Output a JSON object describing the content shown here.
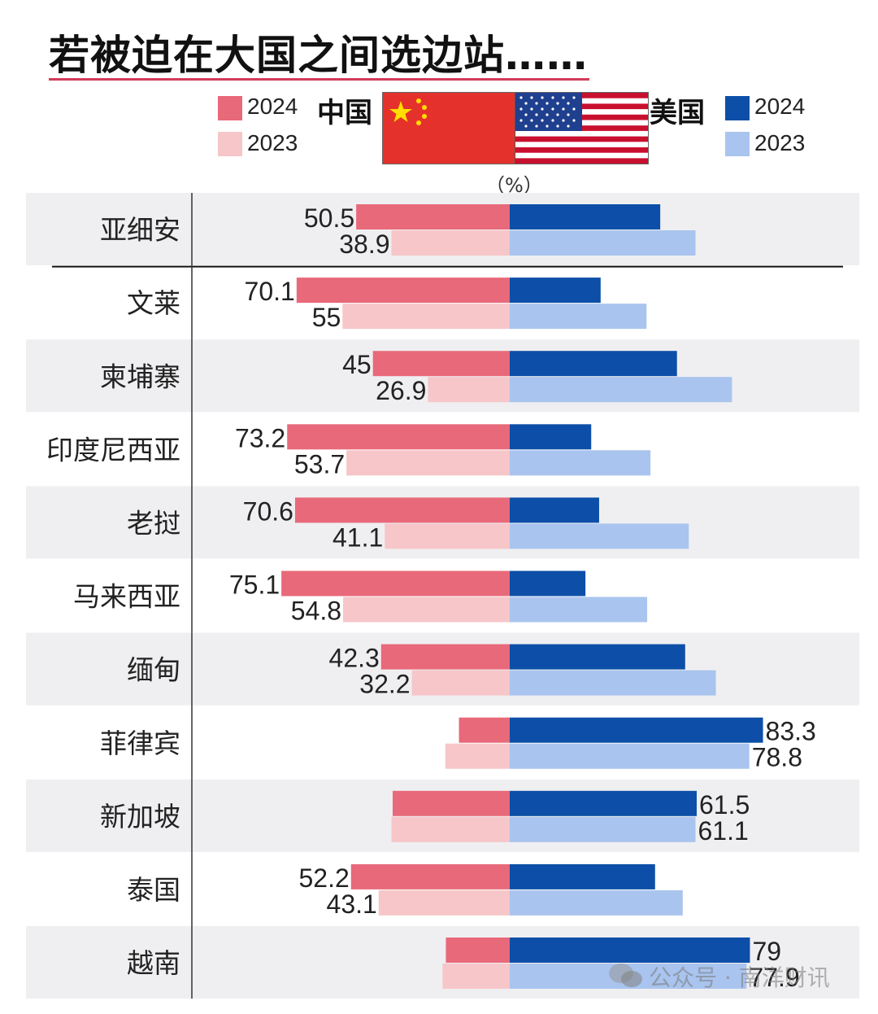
{
  "title": "若被迫在大国之间选边站……",
  "legend": {
    "china_label": "中国",
    "usa_label": "美国",
    "year_2024": "2024",
    "year_2023": "2023",
    "unit": "（%）"
  },
  "colors": {
    "china_2024": "#e8697a",
    "china_2023": "#f7c6c8",
    "usa_2024": "#0d4fa8",
    "usa_2023": "#a9c4ee",
    "row_band": "#efeff1",
    "title_rule": "#d23c5a"
  },
  "watermark": "公众号 · 南洋财讯",
  "chart_data": {
    "type": "bar",
    "orientation": "diverging-horizontal",
    "categories": [
      "亚细安",
      "文莱",
      "柬埔寨",
      "印度尼西亚",
      "老挝",
      "马来西亚",
      "缅甸",
      "菲律宾",
      "新加坡",
      "泰国",
      "越南"
    ],
    "series": [
      {
        "name": "中国 2024",
        "values": [
          50.5,
          70.1,
          45,
          73.2,
          70.6,
          75.1,
          42.3,
          16.7,
          38.5,
          52.2,
          21
        ],
        "labels": [
          "50.5",
          "70.1",
          "45",
          "73.2",
          "70.6",
          "75.1",
          "42.3",
          "",
          "",
          "52.2",
          ""
        ]
      },
      {
        "name": "中国 2023",
        "values": [
          38.9,
          55,
          26.9,
          53.7,
          41.1,
          54.8,
          32.2,
          21.2,
          38.9,
          43.1,
          22.1
        ],
        "labels": [
          "38.9",
          "55",
          "26.9",
          "53.7",
          "41.1",
          "54.8",
          "32.2",
          "",
          "",
          "43.1",
          ""
        ]
      },
      {
        "name": "美国 2024",
        "values": [
          49.5,
          29.9,
          55,
          26.8,
          29.4,
          24.9,
          57.7,
          83.3,
          61.5,
          47.8,
          79
        ],
        "labels": [
          "",
          "",
          "",
          "",
          "",
          "",
          "",
          "83.3",
          "61.5",
          "",
          "79"
        ]
      },
      {
        "name": "美国 2023",
        "values": [
          61.1,
          45,
          73.1,
          46.3,
          58.9,
          45.2,
          67.8,
          78.8,
          61.1,
          56.9,
          77.9
        ],
        "labels": [
          "",
          "",
          "",
          "",
          "",
          "",
          "",
          "78.8",
          "61.1",
          "",
          "77.9"
        ]
      }
    ],
    "xlim": [
      0,
      100
    ]
  }
}
